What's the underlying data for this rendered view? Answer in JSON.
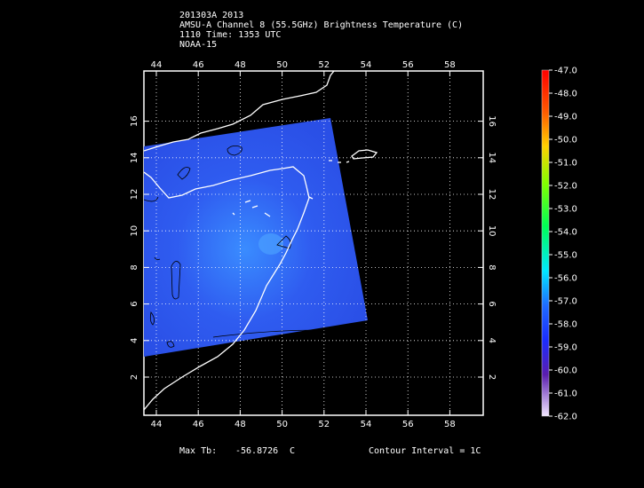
{
  "header": {
    "line1": "201303A 2013",
    "line2": "AMSU-A Channel 8 (55.5GHz) Brightness Temperature (C)",
    "line3": "1110 Time: 1353 UTC",
    "line4": "NOAA-15"
  },
  "axes": {
    "lon_ticks": [
      "44",
      "46",
      "48",
      "50",
      "52",
      "54",
      "56",
      "58"
    ],
    "lat_ticks": [
      "2",
      "4",
      "6",
      "8",
      "10",
      "12",
      "14",
      "16"
    ]
  },
  "colorbar": {
    "labels": [
      "-47.0",
      "-48.0",
      "-49.0",
      "-50.0",
      "-51.0",
      "-52.0",
      "-53.0",
      "-54.0",
      "-55.0",
      "-56.0",
      "-57.0",
      "-58.0",
      "-59.0",
      "-60.0",
      "-61.0",
      "-62.0"
    ]
  },
  "footer": {
    "max_label": "Max Tb:",
    "max_value": "-56.8726",
    "max_unit": "C",
    "contour": "Contour Interval = 1C"
  },
  "colors": {
    "swath": "#2f5cf0",
    "coast": "#ffffff",
    "grid": "#ffffff",
    "background": "#000000"
  }
}
